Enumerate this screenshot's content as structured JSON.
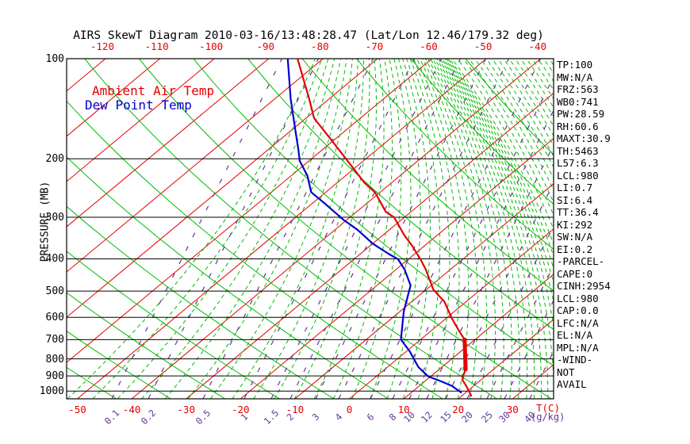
{
  "title": "AIRS SkewT Diagram 2010-03-16/13:48:28.47 (Lat/Lon 12.46/179.32 deg)",
  "legend": {
    "temperature": "Ambient Air Temp",
    "dew_point": "Dew Point Temp"
  },
  "colors": {
    "temperature": "#e60000",
    "dew_point": "#0000cc",
    "isotherm": "#e60000",
    "adiabat": "#00bb00",
    "mixing_ratio": "#663399",
    "isobar": "#000000",
    "background": "#ffffff"
  },
  "axes": {
    "pressure_label": "PRESSURE (MB)",
    "pressure_ticks": [
      100,
      200,
      300,
      400,
      500,
      600,
      700,
      800,
      900,
      1000
    ],
    "top_temp_ticks": [
      -120,
      -110,
      -100,
      -90,
      -80,
      -70,
      -60,
      -50,
      -40
    ],
    "bottom_temp_ticks": [
      -50,
      -40,
      -30,
      -20,
      -10,
      0,
      10,
      20,
      30
    ],
    "temp_unit": "T(C)",
    "mixing_ratio_ticks": [
      0.1,
      0.2,
      0.5,
      1,
      1.5,
      2,
      3,
      4,
      6,
      8,
      10,
      12,
      15,
      20,
      25,
      30,
      40
    ],
    "mixing_ratio_unit": "(g/kg)"
  },
  "stats": [
    "TP:100",
    "MW:N/A",
    "FRZ:563",
    "WB0:741",
    "PW:28.59",
    "RH:60.6",
    "MAXT:30.9",
    "TH:5463",
    "L57:6.3",
    "LCL:980",
    "LI:0.7",
    "SI:6.4",
    "TT:36.4",
    "KI:292",
    "SW:N/A",
    "EI:0.2",
    "-PARCEL-",
    "CAPE:0",
    "CINH:2954",
    "LCL:980",
    "CAP:0.0",
    "LFC:N/A",
    "EL:N/A",
    "MPL:N/A",
    "-WIND-",
    "NOT",
    "AVAIL"
  ],
  "chart_data": {
    "type": "line",
    "subtype": "skew-t log-p sounding",
    "title": "AIRS SkewT Diagram 2010-03-16/13:48:28.47 (Lat/Lon 12.46/179.32 deg)",
    "x_axis_label": "T(C)",
    "y_axis_label": "PRESSURE (MB)",
    "y_scale": "log",
    "skew": "isotherms slant up-right",
    "pressure_range_mb": [
      100,
      1056
    ],
    "temp_labels_range_c": [
      -120,
      30
    ],
    "isobars_mb": [
      100,
      200,
      300,
      400,
      500,
      600,
      700,
      800,
      900,
      1000
    ],
    "isotherm_labels_top_c": [
      -120,
      -110,
      -100,
      -90,
      -80,
      -70,
      -60,
      -50,
      -40
    ],
    "isotherm_labels_bottom_c": [
      -50,
      -40,
      -30,
      -20,
      -10,
      0,
      10,
      20,
      30
    ],
    "mixing_ratio_lines_g_kg": [
      0.1,
      0.2,
      0.5,
      1,
      1.5,
      2,
      3,
      4,
      6,
      8,
      10,
      12,
      15,
      20,
      25,
      30,
      40
    ],
    "series": [
      {
        "name": "Ambient Air Temp",
        "color": "#e60000",
        "points_pressure_mb_temp_c": [
          [
            100,
            -84.7
          ],
          [
            132,
            -73.7
          ],
          [
            151,
            -68.5
          ],
          [
            175,
            -60.7
          ],
          [
            203,
            -52.9
          ],
          [
            236,
            -45.0
          ],
          [
            253,
            -40.8
          ],
          [
            289,
            -34.6
          ],
          [
            300,
            -31.9
          ],
          [
            340,
            -26.0
          ],
          [
            366,
            -22.2
          ],
          [
            401,
            -17.8
          ],
          [
            431,
            -14.5
          ],
          [
            494,
            -8.8
          ],
          [
            514,
            -6.6
          ],
          [
            537,
            -4.1
          ],
          [
            606,
            1.2
          ],
          [
            661,
            5.3
          ],
          [
            700,
            8.1
          ],
          [
            861,
            14.9
          ],
          [
            894,
            15.7
          ],
          [
            925,
            16.6
          ],
          [
            966,
            18.7
          ],
          [
            1032,
            21.7
          ]
        ]
      },
      {
        "name": "Dew Point Temp",
        "color": "#0000cc",
        "points_pressure_mb_temp_c": [
          [
            100,
            -86.5
          ],
          [
            132,
            -77.1
          ],
          [
            160,
            -70.2
          ],
          [
            189,
            -64.2
          ],
          [
            203,
            -61.7
          ],
          [
            225,
            -57.0
          ],
          [
            252,
            -52.7
          ],
          [
            273,
            -47.6
          ],
          [
            305,
            -40.7
          ],
          [
            327,
            -35.9
          ],
          [
            360,
            -30.0
          ],
          [
            386,
            -24.9
          ],
          [
            401,
            -21.9
          ],
          [
            431,
            -18.4
          ],
          [
            481,
            -13.8
          ],
          [
            576,
            -9.3
          ],
          [
            700,
            -3.6
          ],
          [
            759,
            0.6
          ],
          [
            847,
            5.7
          ],
          [
            904,
            9.6
          ],
          [
            935,
            13.1
          ],
          [
            966,
            16.1
          ],
          [
            1009,
            19.1
          ]
        ]
      }
    ],
    "highlight_segment": {
      "name": "thick temperature segment",
      "color": "#e60000",
      "points_pressure_mb_temp_c": [
        [
          700,
          8.1
        ],
        [
          861,
          14.9
        ]
      ]
    }
  }
}
